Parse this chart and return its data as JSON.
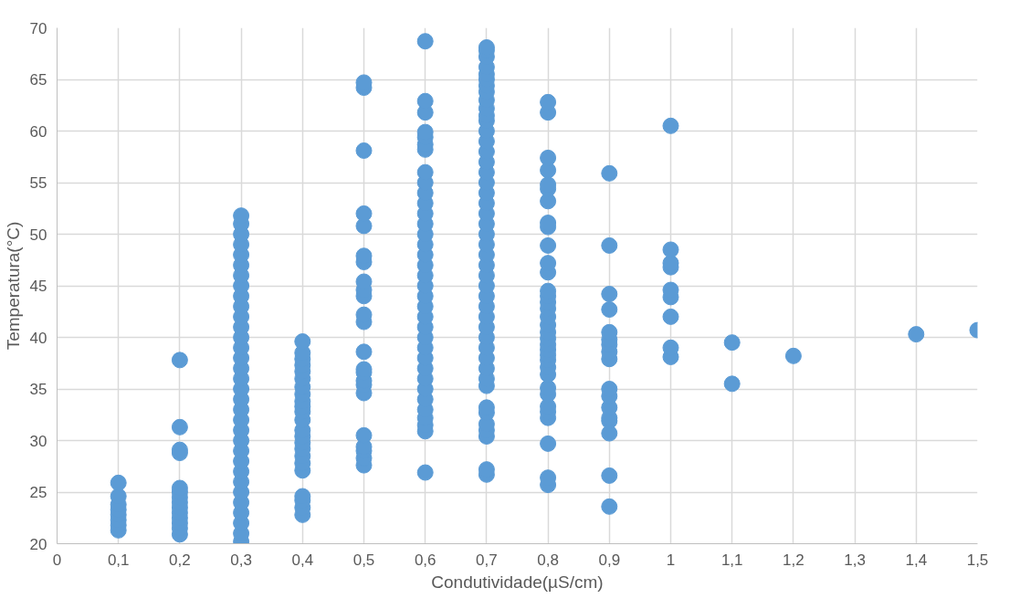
{
  "chart_data": {
    "type": "scatter",
    "xlabel": "Condutividade(µS/cm)",
    "ylabel": "Temperatura(°C)",
    "xlim": [
      0,
      1.5
    ],
    "ylim": [
      20,
      70
    ],
    "xticks": [
      0,
      {
        "value": 0.1,
        "label": "0,1"
      },
      {
        "value": 0.2,
        "label": "0,2"
      },
      {
        "value": 0.3,
        "label": "0,3"
      },
      {
        "value": 0.4,
        "label": "0,4"
      },
      {
        "value": 0.5,
        "label": "0,5"
      },
      {
        "value": 0.6,
        "label": "0,6"
      },
      {
        "value": 0.7,
        "label": "0,7"
      },
      {
        "value": 0.8,
        "label": "0,8"
      },
      {
        "value": 0.9,
        "label": "0,9"
      },
      1,
      {
        "value": 1.1,
        "label": "1,1"
      },
      {
        "value": 1.2,
        "label": "1,2"
      },
      {
        "value": 1.3,
        "label": "1,3"
      },
      {
        "value": 1.4,
        "label": "1,4"
      },
      {
        "value": 1.5,
        "label": "1,5"
      }
    ],
    "yticks": [
      20,
      25,
      30,
      35,
      40,
      45,
      50,
      55,
      60,
      65,
      70
    ],
    "grid": true,
    "marker": "circle",
    "series": [
      {
        "color": "#5b9bd5",
        "x": [
          0.1,
          0.1,
          0.1,
          0.1,
          0.1,
          0.1,
          0.1,
          0.1,
          0.2,
          0.2,
          0.2,
          0.2,
          0.2,
          0.2,
          0.2,
          0.2,
          0.2,
          0.2,
          0.2,
          0.2,
          0.2,
          0.2,
          0.3,
          0.3,
          0.3,
          0.3,
          0.3,
          0.3,
          0.3,
          0.3,
          0.3,
          0.3,
          0.3,
          0.3,
          0.3,
          0.3,
          0.3,
          0.3,
          0.3,
          0.3,
          0.3,
          0.3,
          0.3,
          0.3,
          0.3,
          0.3,
          0.3,
          0.3,
          0.3,
          0.3,
          0.3,
          0.3,
          0.3,
          0.3,
          0.3,
          0.4,
          0.4,
          0.4,
          0.4,
          0.4,
          0.4,
          0.4,
          0.4,
          0.4,
          0.4,
          0.4,
          0.4,
          0.4,
          0.4,
          0.4,
          0.4,
          0.4,
          0.4,
          0.4,
          0.4,
          0.4,
          0.4,
          0.4,
          0.5,
          0.5,
          0.5,
          0.5,
          0.5,
          0.5,
          0.5,
          0.5,
          0.5,
          0.5,
          0.5,
          0.5,
          0.5,
          0.5,
          0.5,
          0.5,
          0.5,
          0.5,
          0.5,
          0.5,
          0.5,
          0.5,
          0.5,
          0.6,
          0.6,
          0.6,
          0.6,
          0.6,
          0.6,
          0.6,
          0.6,
          0.6,
          0.6,
          0.6,
          0.6,
          0.6,
          0.6,
          0.6,
          0.6,
          0.6,
          0.6,
          0.6,
          0.6,
          0.6,
          0.6,
          0.6,
          0.6,
          0.6,
          0.6,
          0.6,
          0.6,
          0.6,
          0.6,
          0.6,
          0.6,
          0.6,
          0.6,
          0.6,
          0.7,
          0.7,
          0.7,
          0.7,
          0.7,
          0.7,
          0.7,
          0.7,
          0.7,
          0.7,
          0.7,
          0.7,
          0.7,
          0.7,
          0.7,
          0.7,
          0.7,
          0.7,
          0.7,
          0.7,
          0.7,
          0.7,
          0.7,
          0.7,
          0.7,
          0.7,
          0.7,
          0.7,
          0.7,
          0.7,
          0.7,
          0.7,
          0.7,
          0.7,
          0.7,
          0.7,
          0.7,
          0.7,
          0.7,
          0.7,
          0.7,
          0.7,
          0.7,
          0.7,
          0.7,
          0.8,
          0.8,
          0.8,
          0.8,
          0.8,
          0.8,
          0.8,
          0.8,
          0.8,
          0.8,
          0.8,
          0.8,
          0.8,
          0.8,
          0.8,
          0.8,
          0.8,
          0.8,
          0.8,
          0.8,
          0.8,
          0.8,
          0.8,
          0.8,
          0.8,
          0.8,
          0.8,
          0.8,
          0.8,
          0.8,
          0.8,
          0.8,
          0.8,
          0.8,
          0.9,
          0.9,
          0.9,
          0.9,
          0.9,
          0.9,
          0.9,
          0.9,
          0.9,
          0.9,
          0.9,
          0.9,
          0.9,
          0.9,
          0.9,
          0.9,
          0.9,
          1,
          1,
          1,
          1,
          1,
          1,
          1,
          1,
          1,
          1.1,
          1.1,
          1.2,
          1.4,
          1.5
        ],
        "values": [
          21.3,
          21.8,
          22.3,
          22.8,
          23.3,
          23.8,
          24.6,
          25.9,
          20.9,
          21.5,
          22.0,
          22.5,
          23.0,
          23.5,
          24.0,
          24.5,
          25.0,
          25.4,
          28.8,
          29.1,
          31.3,
          37.8,
          20.2,
          21,
          22,
          23,
          24,
          25,
          26,
          27,
          28,
          29,
          30,
          31,
          32,
          33,
          34,
          35,
          36,
          37,
          38,
          39,
          40,
          41,
          42,
          43,
          44,
          45,
          46,
          47,
          48,
          49,
          50,
          51,
          51.8,
          22.8,
          23.5,
          24.2,
          24.6,
          27.1,
          27.8,
          28.5,
          29.2,
          29.8,
          30.4,
          31.0,
          32.0,
          32.8,
          33.3,
          33.8,
          34.5,
          35.2,
          36.0,
          36.7,
          37.3,
          37.9,
          38.5,
          39.6,
          27.6,
          28.3,
          29.0,
          29.4,
          30.5,
          34.6,
          35.4,
          35.8,
          36.6,
          36.9,
          38.6,
          41.5,
          42.2,
          44.0,
          44.6,
          45.4,
          47.3,
          47.9,
          50.8,
          52.0,
          58.1,
          64.2,
          64.7,
          26.9,
          30.9,
          31.5,
          32.2,
          33,
          34,
          35,
          36,
          37,
          38,
          39,
          40,
          41,
          42,
          43,
          44,
          45,
          46,
          47,
          48,
          49,
          50,
          51,
          52,
          53,
          54,
          55,
          56,
          58.2,
          58.7,
          59.4,
          59.9,
          61.8,
          62.9,
          68.7,
          26.7,
          27.2,
          30.4,
          31.0,
          31.6,
          32.7,
          33.2,
          35.3,
          36,
          37,
          38,
          39,
          40,
          41,
          42,
          43,
          44,
          45,
          46,
          47,
          48,
          49,
          50,
          51,
          52,
          53,
          54,
          55,
          56,
          57,
          58,
          59,
          60,
          61,
          61.5,
          62.2,
          63.0,
          63.8,
          64.4,
          65.0,
          65.5,
          66.2,
          67.2,
          67.8,
          68.1,
          25.7,
          26.4,
          29.7,
          32.2,
          32.8,
          33.3,
          34.5,
          35.1,
          36.4,
          37.1,
          37.8,
          38.3,
          38.8,
          39.3,
          39.9,
          40.5,
          41.2,
          42.0,
          42.8,
          43.4,
          44.0,
          44.5,
          46.3,
          47.2,
          48.9,
          50.7,
          51.1,
          53.2,
          54.4,
          54.8,
          56.2,
          57.4,
          61.8,
          62.8,
          23.6,
          26.6,
          30.7,
          31.9,
          32.2,
          33.2,
          34.3,
          35.0,
          37.9,
          38.6,
          39.3,
          39.8,
          40.5,
          42.7,
          44.2,
          48.9,
          55.9,
          38.1,
          39.0,
          42.0,
          43.9,
          44.6,
          46.8,
          47.2,
          48.5,
          60.5,
          35.5,
          39.5,
          38.2,
          40.3,
          40.7
        ]
      }
    ]
  }
}
